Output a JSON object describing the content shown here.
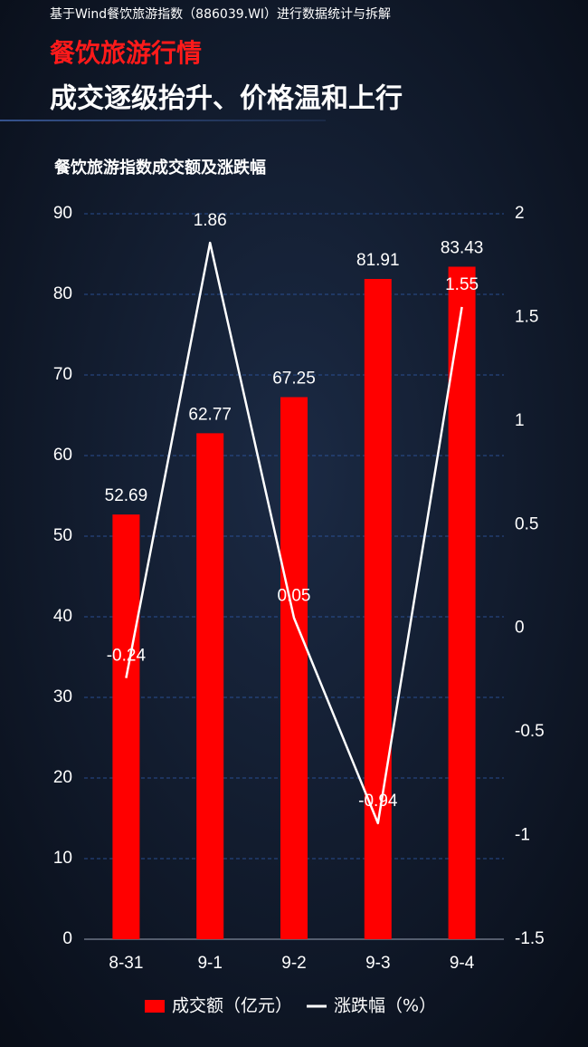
{
  "header": {
    "source": "基于Wind餐饮旅游指数（886039.WI）进行数据统计与拆解",
    "tag": "餐饮旅游行情",
    "headline": "成交逐级抬升、价格温和上行"
  },
  "chart_data": {
    "type": "bar",
    "title": "餐饮旅游指数成交额及涨跌幅",
    "categories": [
      "8-31",
      "9-1",
      "9-2",
      "9-3",
      "9-4"
    ],
    "series": [
      {
        "name": "成交额（亿元）",
        "color": "#ff0000",
        "values": [
          52.69,
          62.77,
          67.25,
          81.91,
          83.43
        ]
      },
      {
        "name": "涨跌幅（%）",
        "color": "#ffffff",
        "type": "line",
        "axis": "y2",
        "values": [
          -0.24,
          1.86,
          0.05,
          -0.94,
          1.55
        ]
      }
    ],
    "ylim": [
      0,
      90
    ],
    "yticks": [
      0,
      10,
      20,
      30,
      40,
      50,
      60,
      70,
      80,
      90
    ],
    "y2lim": [
      -1.5,
      2
    ],
    "y2ticks": [
      -1.5,
      -1,
      -0.5,
      0,
      0.5,
      1,
      1.5,
      2
    ],
    "grid": true,
    "legend": "bottom"
  }
}
